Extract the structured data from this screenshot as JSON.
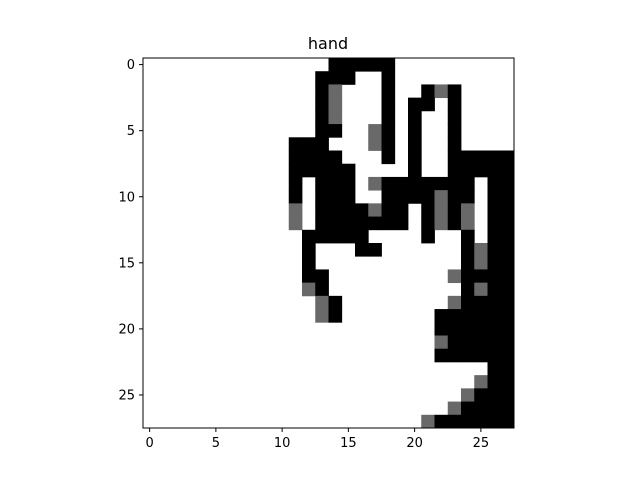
{
  "chart_data": {
    "type": "heatmap",
    "title": "hand",
    "xlabel": "",
    "ylabel": "",
    "colormap": "gray_r",
    "value_range": [
      0,
      255
    ],
    "xlim": [
      -0.5,
      27.5
    ],
    "ylim": [
      27.5,
      -0.5
    ],
    "xticks": [
      0,
      5,
      10,
      15,
      20,
      25
    ],
    "yticks": [
      0,
      5,
      10,
      15,
      20,
      25
    ],
    "xtick_labels": [
      "0",
      "5",
      "10",
      "15",
      "20",
      "25"
    ],
    "ytick_labels": [
      "0",
      "5",
      "10",
      "15",
      "20",
      "25"
    ],
    "grid": false,
    "rows": [
      "0000000000000022222000000000",
      "0000000000000222002000000000",
      "0000000000000210002002120000",
      "0000000000000210002022020000",
      "0000000000000210002020020000",
      "0000000000000220012020020000",
      "0000000000022200012020020000",
      "0000000000022220002020022222",
      "0000000000022222000020022222",
      "0000000000020222012222222022",
      "0000000000020222002222122022",
      "0000000000010222212202121022",
      "0000000000010222222202121022",
      "0000000000002222200002002022",
      "0000000000002000220000002122",
      "0000000000002000000000002122",
      "0000000000002200000000012222",
      "0000000000001200000000002122",
      "0000000000000120000000012222",
      "0000000000000120000000222222",
      "0000000000000000000000222222",
      "0000000000000000000000122222",
      "0000000000000000000000222222",
      "0000000000000000000000000022",
      "0000000000000000000000000122",
      "0000000000000000000000001222",
      "0000000000000000000000012222",
      "0000000000000000000001222222"
    ],
    "levels": {
      "0": 0,
      "1": 150,
      "2": 255
    }
  }
}
